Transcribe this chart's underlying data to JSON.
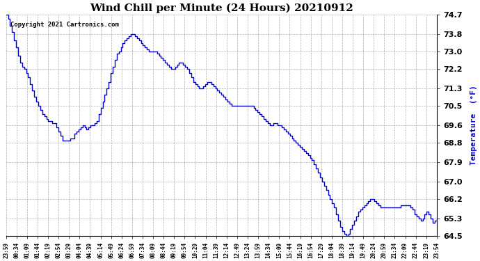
{
  "title": "Wind Chill per Minute (24 Hours) 20210912",
  "ylabel": "Temperature  (°F)",
  "copyright_text": "Copyright 2021 Cartronics.com",
  "line_color": "#0000cc",
  "background_color": "#ffffff",
  "grid_color": "#999999",
  "ylim": [
    64.5,
    74.7
  ],
  "yticks": [
    74.7,
    73.8,
    73.0,
    72.2,
    71.3,
    70.5,
    69.6,
    68.8,
    67.9,
    67.0,
    66.2,
    65.3,
    64.5
  ],
  "xtick_labels": [
    "23:59",
    "00:34",
    "01:09",
    "01:44",
    "02:19",
    "02:54",
    "03:29",
    "04:04",
    "04:39",
    "05:14",
    "05:49",
    "06:24",
    "06:59",
    "07:34",
    "08:09",
    "08:44",
    "09:19",
    "09:54",
    "10:29",
    "11:04",
    "11:39",
    "12:14",
    "12:49",
    "13:24",
    "13:59",
    "14:34",
    "15:09",
    "15:44",
    "16:19",
    "16:54",
    "17:29",
    "18:04",
    "18:39",
    "19:14",
    "19:49",
    "20:24",
    "20:59",
    "21:34",
    "22:09",
    "22:44",
    "23:19",
    "23:54"
  ],
  "data_y": [
    74.7,
    74.5,
    74.2,
    73.9,
    73.5,
    73.2,
    72.8,
    72.5,
    72.3,
    72.2,
    72.0,
    71.8,
    71.5,
    71.2,
    70.9,
    70.7,
    70.5,
    70.3,
    70.1,
    70.0,
    69.9,
    69.8,
    69.8,
    69.7,
    69.7,
    69.5,
    69.3,
    69.1,
    68.9,
    68.9,
    68.9,
    68.9,
    69.0,
    69.0,
    69.2,
    69.3,
    69.4,
    69.5,
    69.6,
    69.5,
    69.4,
    69.5,
    69.6,
    69.6,
    69.7,
    69.8,
    70.1,
    70.4,
    70.7,
    71.0,
    71.3,
    71.6,
    72.0,
    72.3,
    72.6,
    72.9,
    73.0,
    73.2,
    73.4,
    73.5,
    73.6,
    73.7,
    73.8,
    73.8,
    73.7,
    73.6,
    73.5,
    73.4,
    73.3,
    73.2,
    73.1,
    73.0,
    73.0,
    73.0,
    73.0,
    72.9,
    72.8,
    72.7,
    72.6,
    72.5,
    72.4,
    72.3,
    72.2,
    72.2,
    72.3,
    72.4,
    72.5,
    72.5,
    72.4,
    72.3,
    72.2,
    72.0,
    71.8,
    71.6,
    71.5,
    71.4,
    71.3,
    71.3,
    71.4,
    71.5,
    71.6,
    71.6,
    71.5,
    71.4,
    71.3,
    71.2,
    71.1,
    71.0,
    70.9,
    70.8,
    70.7,
    70.6,
    70.5,
    70.5,
    70.5,
    70.5,
    70.5,
    70.5,
    70.5,
    70.5,
    70.5,
    70.5,
    70.5,
    70.4,
    70.3,
    70.2,
    70.1,
    70.0,
    69.9,
    69.8,
    69.7,
    69.6,
    69.6,
    69.7,
    69.7,
    69.6,
    69.6,
    69.5,
    69.4,
    69.3,
    69.2,
    69.1,
    69.0,
    68.9,
    68.8,
    68.7,
    68.6,
    68.5,
    68.4,
    68.3,
    68.2,
    68.1,
    68.0,
    67.8,
    67.6,
    67.4,
    67.2,
    67.0,
    66.8,
    66.6,
    66.4,
    66.2,
    66.0,
    65.8,
    65.5,
    65.2,
    64.9,
    64.7,
    64.6,
    64.5,
    64.6,
    64.8,
    65.0,
    65.2,
    65.4,
    65.6,
    65.7,
    65.8,
    65.9,
    66.0,
    66.1,
    66.2,
    66.2,
    66.1,
    66.0,
    65.9,
    65.8,
    65.8,
    65.8,
    65.8,
    65.8,
    65.8,
    65.8,
    65.8,
    65.8,
    65.8,
    65.9,
    65.9,
    65.9,
    65.9,
    65.9,
    65.8,
    65.7,
    65.5,
    65.4,
    65.3,
    65.2,
    65.3,
    65.5,
    65.6,
    65.5,
    65.3,
    65.1,
    65.2,
    65.3
  ]
}
